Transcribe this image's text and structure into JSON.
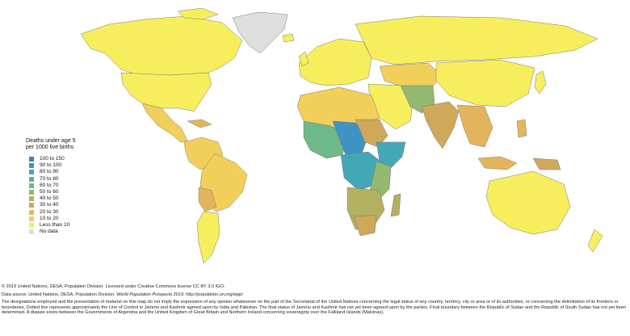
{
  "legend": {
    "title_line1": "Deaths under age 5",
    "title_line2": "per 1000 live births",
    "items": [
      {
        "label": "100 to 150",
        "color": "#3a7fc1"
      },
      {
        "label": "90 to 100",
        "color": "#3e93c2"
      },
      {
        "label": "80 to 90",
        "color": "#44a7b6"
      },
      {
        "label": "70 to 80",
        "color": "#56b39c"
      },
      {
        "label": "60 to 70",
        "color": "#6fb989"
      },
      {
        "label": "50 to 60",
        "color": "#93b86f"
      },
      {
        "label": "40 to 50",
        "color": "#b3b15f"
      },
      {
        "label": "30 to 40",
        "color": "#cfa85a"
      },
      {
        "label": "20 to 30",
        "color": "#e4b45c"
      },
      {
        "label": "10 to 20",
        "color": "#f2cf5a"
      },
      {
        "label": "Less than 10",
        "color": "#f7ee5e"
      },
      {
        "label": "No data",
        "color": "#dedede"
      }
    ]
  },
  "footer": {
    "copyright": "© 2019 United Nations, DESA, Population Division. Licensed under Creative Commons license CC BY 3.0 IGO.",
    "source_prefix": "Data source: United Nations, DESA, Population Division.",
    "source_title": "World Population Prospects 2019",
    "source_suffix": ". http://population.un.org/wpp/",
    "disclaimer": "The designations employed and the presentation of material on this map do not imply the expression of any opinion whatsoever on the part of the Secretariat of the United Nations concerning the legal status of any country, territory, city or area or of its authorities, or concerning the delimitation of its frontiers or boundaries. Dotted line represents approximately the Line of Control in Jammu and Kashmir agreed upon by India and Pakistan. The final status of Jammu and Kashmir has not yet been agreed upon by the parties. Final boundary between the Republic of Sudan and the Republic of South Sudan has not yet been determined. A dispute exists between the Governments of Argentina and the United Kingdom of Great Britain and Northern Ireland concerning sovereignty over the Falkland Islands (Malvinas)."
  }
}
